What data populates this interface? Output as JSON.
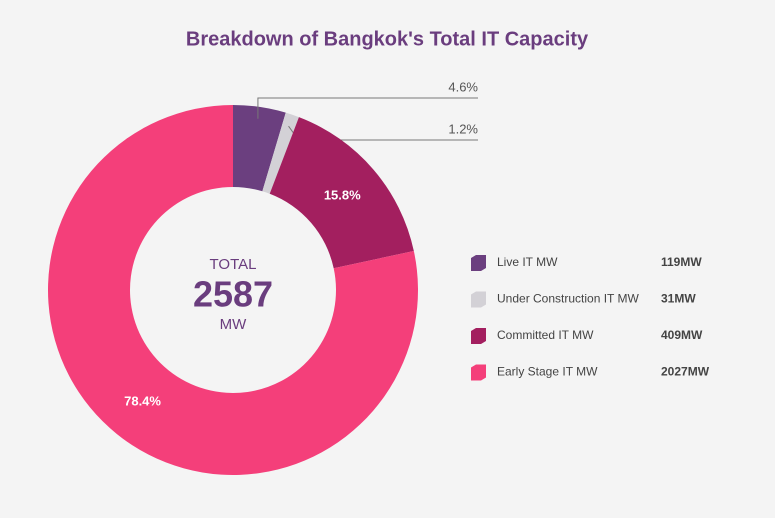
{
  "chart_data": {
    "type": "donut",
    "title": "Breakdown of Bangkok's Total IT Capacity",
    "categories": [
      "Live IT MW",
      "Under Construction IT MW",
      "Committed IT MW",
      "Early Stage IT MW"
    ],
    "values": [
      119,
      31,
      409,
      2027
    ],
    "value_labels": [
      "4.6%",
      "1.2%",
      "15.8%",
      "78.4%"
    ],
    "legend_value_labels": [
      "119MW",
      "31MW",
      "409MW",
      "2027MW"
    ],
    "colors": [
      "#6b3f7f",
      "#d3d1d6",
      "#a31f5f",
      "#f43f7a"
    ],
    "center_label": {
      "top": "TOTAL",
      "value": "2587",
      "unit": "MW"
    }
  }
}
